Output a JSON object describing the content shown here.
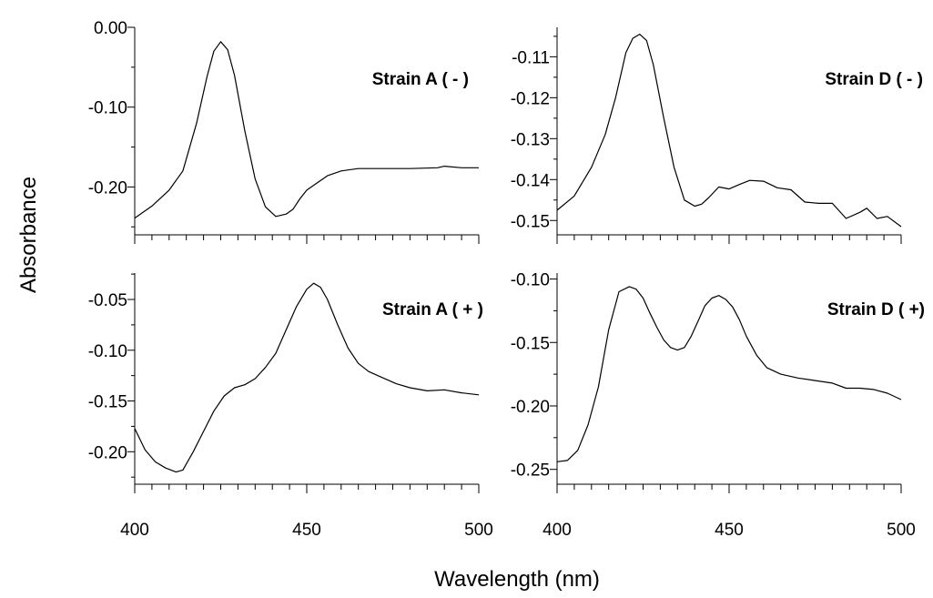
{
  "figure": {
    "ylabel": "Absorbance",
    "xlabel": "Wavelength (nm)"
  },
  "chart_data": [
    {
      "type": "line",
      "title": "Strain A ( - )",
      "xlim": [
        400,
        500
      ],
      "ylim": [
        -0.26,
        0.0
      ],
      "yticks": [
        0.0,
        -0.1,
        -0.2
      ],
      "ytick_labels": [
        "0.00",
        "-0.10",
        "-0.20"
      ],
      "xticks": [],
      "series": [
        {
          "x": [
            400,
            405,
            410,
            414,
            418,
            421,
            423,
            425,
            427,
            429,
            432,
            435,
            438,
            441,
            444,
            446,
            448,
            450,
            453,
            456,
            460,
            465,
            470,
            480,
            488,
            490,
            495,
            500
          ],
          "values": [
            -0.239,
            -0.224,
            -0.204,
            -0.18,
            -0.12,
            -0.062,
            -0.03,
            -0.018,
            -0.028,
            -0.06,
            -0.13,
            -0.19,
            -0.225,
            -0.237,
            -0.234,
            -0.228,
            -0.215,
            -0.204,
            -0.195,
            -0.186,
            -0.18,
            -0.177,
            -0.177,
            -0.177,
            -0.176,
            -0.174,
            -0.176,
            -0.176
          ]
        }
      ]
    },
    {
      "type": "line",
      "title": "Strain D ( - )",
      "xlim": [
        400,
        500
      ],
      "ylim": [
        -0.1535,
        -0.1028
      ],
      "yticks": [
        -0.11,
        -0.12,
        -0.13,
        -0.14,
        -0.15
      ],
      "ytick_labels": [
        "-0.11",
        "-0.12",
        "-0.13",
        "-0.14",
        "-0.15"
      ],
      "xticks": [],
      "series": [
        {
          "x": [
            400,
            405,
            410,
            414,
            417,
            420,
            422,
            424,
            426,
            428,
            431,
            434,
            437,
            440,
            442,
            444,
            447,
            450,
            453,
            456,
            460,
            464,
            468,
            472,
            476,
            480,
            484,
            488,
            490,
            493,
            496,
            500
          ],
          "values": [
            -0.1475,
            -0.144,
            -0.137,
            -0.129,
            -0.12,
            -0.109,
            -0.1055,
            -0.1045,
            -0.106,
            -0.112,
            -0.125,
            -0.137,
            -0.145,
            -0.1465,
            -0.146,
            -0.1445,
            -0.1418,
            -0.1423,
            -0.1412,
            -0.1402,
            -0.1404,
            -0.142,
            -0.1425,
            -0.1455,
            -0.1458,
            -0.1458,
            -0.1495,
            -0.148,
            -0.147,
            -0.1495,
            -0.149,
            -0.1515
          ]
        }
      ]
    },
    {
      "type": "line",
      "title": "Strain A ( + )",
      "xlim": [
        400,
        500
      ],
      "ylim": [
        -0.232,
        -0.024
      ],
      "yticks": [
        -0.05,
        -0.1,
        -0.15,
        -0.2
      ],
      "ytick_labels": [
        "-0.05",
        "-0.10",
        "-0.15",
        "-0.20"
      ],
      "xticks": [
        400,
        450,
        500
      ],
      "xtick_labels": [
        "400",
        "450",
        "500"
      ],
      "series": [
        {
          "x": [
            400,
            403,
            406,
            409,
            412,
            414,
            417,
            420,
            423,
            426,
            429,
            432,
            435,
            438,
            441,
            444,
            447,
            450,
            452,
            454,
            456,
            459,
            462,
            465,
            468,
            472,
            476,
            480,
            485,
            490,
            495,
            500
          ],
          "values": [
            -0.177,
            -0.198,
            -0.21,
            -0.216,
            -0.22,
            -0.218,
            -0.2,
            -0.18,
            -0.16,
            -0.145,
            -0.137,
            -0.134,
            -0.128,
            -0.117,
            -0.103,
            -0.08,
            -0.057,
            -0.04,
            -0.034,
            -0.038,
            -0.05,
            -0.075,
            -0.098,
            -0.113,
            -0.121,
            -0.127,
            -0.133,
            -0.137,
            -0.14,
            -0.139,
            -0.142,
            -0.144
          ]
        }
      ]
    },
    {
      "type": "line",
      "title": "Strain D ( +)",
      "xlim": [
        400,
        500
      ],
      "ylim": [
        -0.2617,
        -0.0953
      ],
      "yticks": [
        -0.1,
        -0.15,
        -0.2,
        -0.25
      ],
      "ytick_labels": [
        "-0.10",
        "-0.15",
        "-0.20",
        "-0.25"
      ],
      "xticks": [
        400,
        450,
        500
      ],
      "xtick_labels": [
        "400",
        "450",
        "500"
      ],
      "series": [
        {
          "x": [
            400,
            403,
            406,
            409,
            412,
            415,
            418,
            421,
            423,
            425,
            427,
            429,
            431,
            433,
            435,
            437,
            439,
            441,
            443,
            445,
            447,
            449,
            451,
            453,
            455,
            458,
            461,
            465,
            470,
            475,
            480,
            484,
            488,
            492,
            496,
            500
          ],
          "values": [
            -0.244,
            -0.243,
            -0.235,
            -0.215,
            -0.185,
            -0.14,
            -0.11,
            -0.106,
            -0.108,
            -0.115,
            -0.127,
            -0.138,
            -0.148,
            -0.154,
            -0.156,
            -0.154,
            -0.145,
            -0.133,
            -0.121,
            -0.115,
            -0.113,
            -0.116,
            -0.122,
            -0.132,
            -0.145,
            -0.16,
            -0.17,
            -0.175,
            -0.178,
            -0.18,
            -0.182,
            -0.186,
            -0.186,
            -0.187,
            -0.19,
            -0.195
          ]
        }
      ]
    }
  ]
}
